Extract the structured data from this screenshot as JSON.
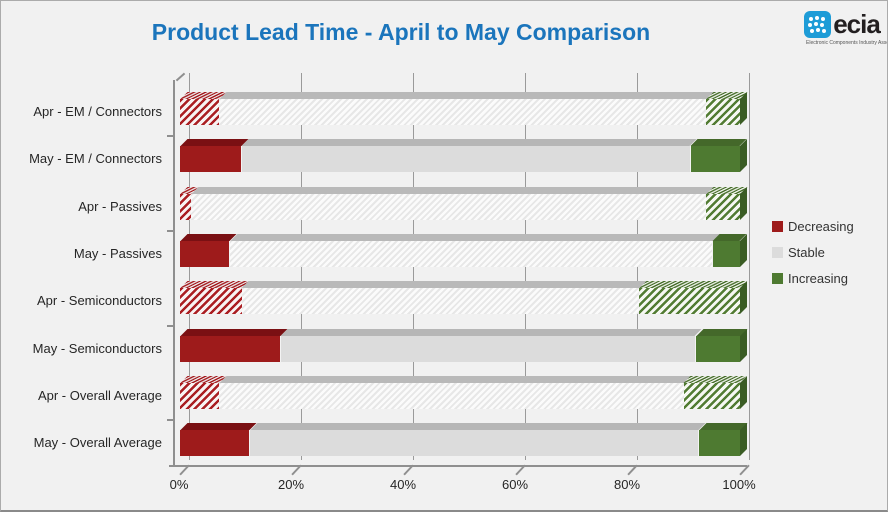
{
  "header": {
    "title": "Product Lead Time - April to May Comparison"
  },
  "logo": {
    "brand": "ecia",
    "tagline": "Electronic Components Industry Association",
    "icon": "dots-globe-icon",
    "brand_blue": "#1e9cd7"
  },
  "legend": [
    {
      "label": "Decreasing",
      "color": "#9e1b1b"
    },
    {
      "label": "Stable",
      "color": "#dcdcdc"
    },
    {
      "label": "Increasing",
      "color": "#4e7a31"
    }
  ],
  "chart_data": {
    "type": "bar",
    "orientation": "horizontal",
    "stacked": true,
    "unit": "percent",
    "title": "Product Lead Time - April to May Comparison",
    "xlabel": "",
    "ylabel": "",
    "xlim": [
      0,
      100
    ],
    "x_tick_labels": [
      "0%",
      "20%",
      "40%",
      "60%",
      "80%",
      "100%"
    ],
    "x_tick_values": [
      0,
      20,
      40,
      60,
      80,
      100
    ],
    "grid": true,
    "legend_position": "right",
    "series_keys": [
      "Decreasing",
      "Stable",
      "Increasing"
    ],
    "style_note": "April bars use hatched pattern fills, May bars use solid fills; 3-D cylinder-style bar chart",
    "rows": [
      {
        "label": "Apr - EM / Connectors",
        "decreasing": 7,
        "stable": 87,
        "increasing": 6,
        "patterns": [
          "hatch",
          "hatch",
          "hatch"
        ]
      },
      {
        "label": "May - EM / Connectors",
        "decreasing": 11,
        "stable": 80,
        "increasing": 9,
        "patterns": [
          "solid",
          "solid",
          "solid"
        ]
      },
      {
        "label": "Apr - Passives",
        "decreasing": 2,
        "stable": 92,
        "increasing": 6,
        "patterns": [
          "hatch",
          "hatch",
          "hatch"
        ]
      },
      {
        "label": "May - Passives",
        "decreasing": 9,
        "stable": 86,
        "increasing": 5,
        "patterns": [
          "solid",
          "hatch",
          "solid"
        ]
      },
      {
        "label": "Apr - Semiconductors",
        "decreasing": 11,
        "stable": 71,
        "increasing": 18,
        "patterns": [
          "hatch",
          "hatch",
          "hatch"
        ]
      },
      {
        "label": "May - Semiconductors",
        "decreasing": 18,
        "stable": 74,
        "increasing": 8,
        "patterns": [
          "solid",
          "solid",
          "solid"
        ]
      },
      {
        "label": "Apr - Overall Average",
        "decreasing": 7,
        "stable": 83,
        "increasing": 10,
        "patterns": [
          "hatch",
          "hatch",
          "hatch"
        ]
      },
      {
        "label": "May - Overall Average",
        "decreasing": 12.5,
        "stable": 80,
        "increasing": 7.5,
        "patterns": [
          "solid",
          "solid",
          "solid"
        ]
      }
    ]
  }
}
